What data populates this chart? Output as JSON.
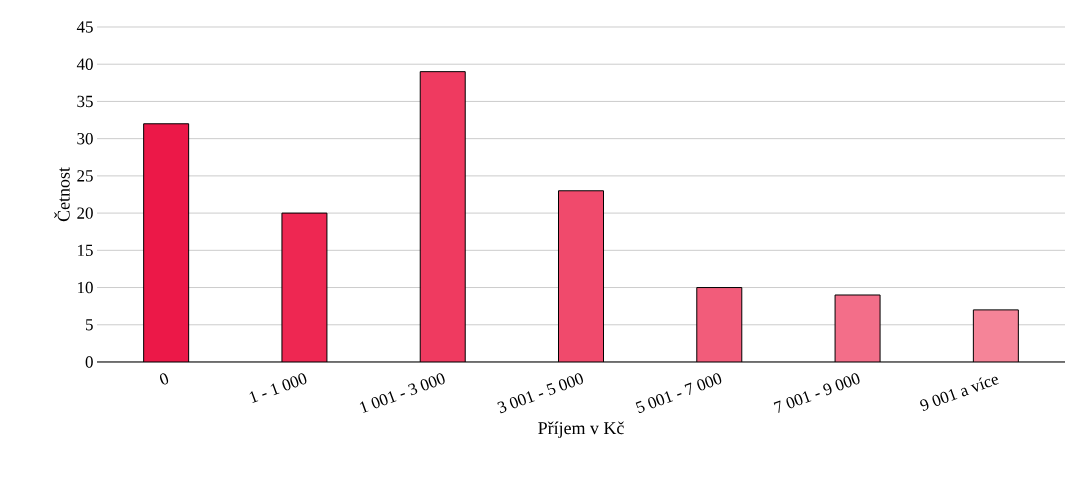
{
  "chart_data": {
    "type": "bar",
    "xlabel": "Příjem v Kč",
    "ylabel": "Četnost",
    "categories": [
      "0",
      "1 - 1 000",
      "1 001 - 3 000",
      "3 001 - 5 000",
      "5 001 - 7 000",
      "7 001 - 9 000",
      "9 001 a více"
    ],
    "values": [
      32,
      20,
      39,
      23,
      10,
      9,
      7
    ],
    "colors": [
      "#ec1848",
      "#ee2752",
      "#ef3a60",
      "#f04a6c",
      "#f25c7a",
      "#f36e89",
      "#f58498"
    ],
    "ylim": [
      0,
      45
    ],
    "yticks": [
      0,
      5,
      10,
      15,
      20,
      25,
      30,
      35,
      40,
      45
    ],
    "grid": "y"
  }
}
